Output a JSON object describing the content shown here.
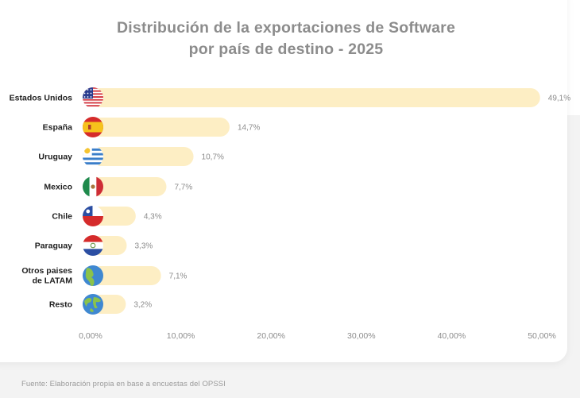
{
  "chart_data": {
    "type": "bar",
    "orientation": "horizontal",
    "title_lines": [
      "Distribución de la exportaciones de Software",
      "por país de destino - 2025"
    ],
    "categories": [
      [
        "Estados Unidos"
      ],
      [
        "España"
      ],
      [
        "Uruguay"
      ],
      [
        "Mexico"
      ],
      [
        "Chile"
      ],
      [
        "Paraguay"
      ],
      [
        "Otros paises",
        "de LATAM"
      ],
      [
        "Resto"
      ]
    ],
    "values": [
      49.1,
      14.7,
      10.7,
      7.7,
      4.3,
      3.3,
      7.1,
      3.2
    ],
    "value_labels": [
      "49,1%",
      "14,7%",
      "10,7%",
      "7,7%",
      "4,3%",
      "3,3%",
      "7,1%",
      "3,2%"
    ],
    "flags": [
      "usa-flag",
      "spain-flag",
      "uruguay-flag",
      "mexico-flag",
      "chile-flag",
      "paraguay-flag",
      "globe-americas-icon",
      "globe-world-icon"
    ],
    "x_ticks": [
      0,
      10,
      20,
      30,
      40,
      50
    ],
    "x_tick_labels": [
      "0,00%",
      "10,00%",
      "20,00%",
      "30,00%",
      "40,00%",
      "50,00%"
    ],
    "xlim": [
      0,
      50
    ],
    "grid": false,
    "colors": {
      "bar": "#fdeec4",
      "title": "#8c8c8c",
      "label": "#1f1f1f",
      "value": "#8c8c8c"
    }
  },
  "source_note": "Fuente: Elaboración propia en base a encuestas del OPSSI"
}
